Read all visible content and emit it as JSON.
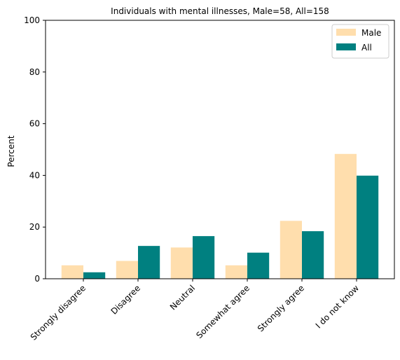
{
  "chart_data": {
    "type": "bar",
    "title": "Individuals with mental illnesses, Male=58, All=158",
    "xlabel": "",
    "ylabel": "Percent",
    "ylim": [
      0,
      100
    ],
    "yticks": [
      0,
      20,
      40,
      60,
      80,
      100
    ],
    "categories": [
      "Strongly disagree",
      "Disagree",
      "Neutral",
      "Somewhat agree",
      "Strongly agree",
      "I do not know"
    ],
    "series": [
      {
        "name": "Male",
        "color": "#ffdead",
        "values": [
          5.2,
          6.9,
          12.1,
          5.2,
          22.4,
          48.3
        ]
      },
      {
        "name": "All",
        "color": "#008080",
        "values": [
          2.5,
          12.7,
          16.5,
          10.1,
          18.4,
          39.9
        ]
      }
    ],
    "legend_position": "top-right",
    "grid": false
  }
}
